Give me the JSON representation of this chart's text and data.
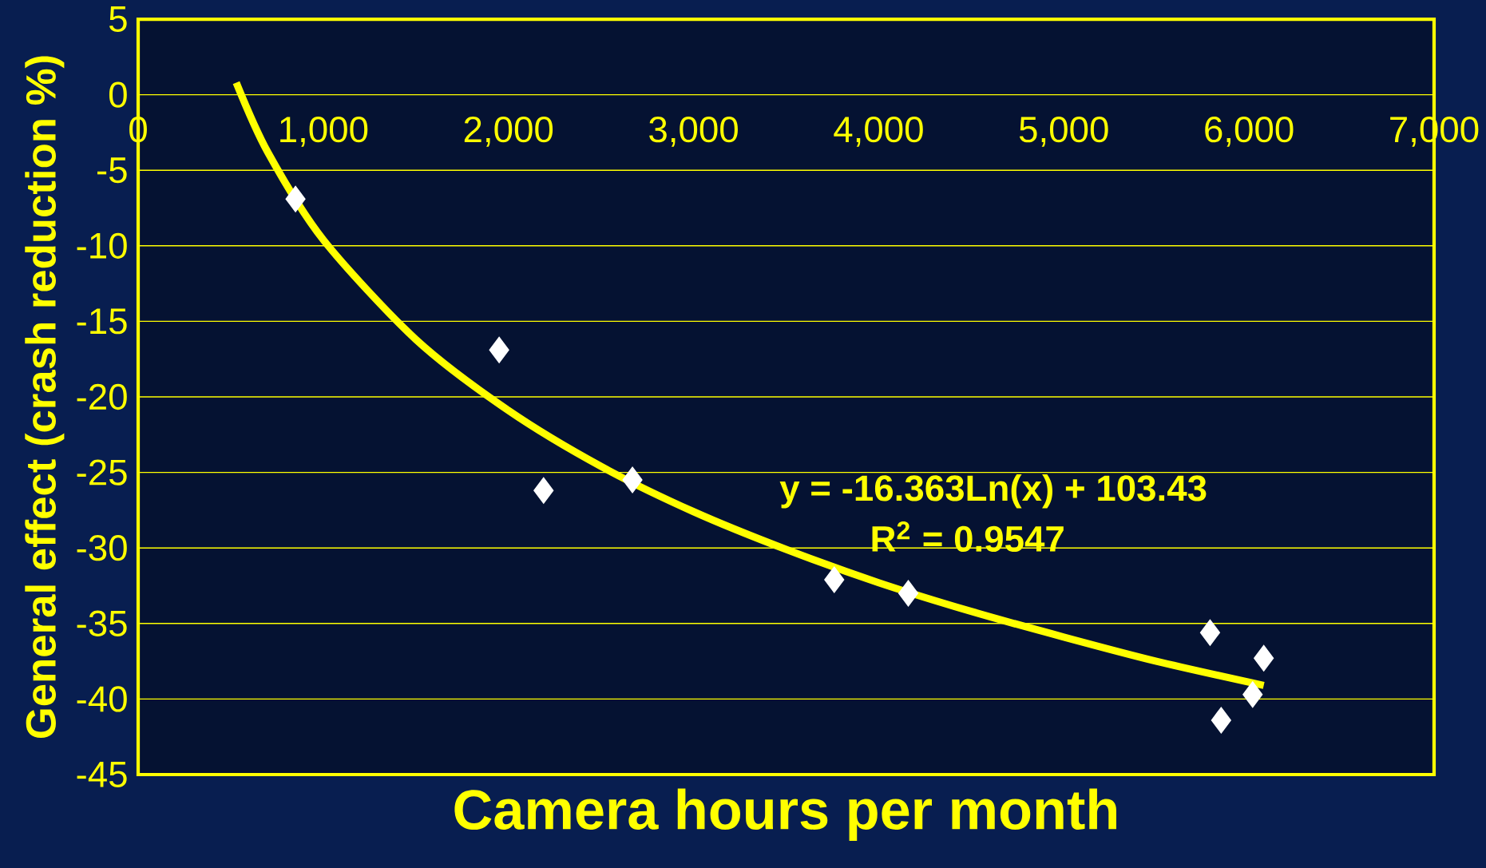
{
  "chart_data": {
    "type": "scatter",
    "xlabel": "Camera hours per month",
    "ylabel": "General effect (crash reduction %)",
    "xlim": [
      0,
      7000
    ],
    "ylim": [
      -45,
      5
    ],
    "xticks": [
      {
        "value": 0,
        "label": "0"
      },
      {
        "value": 1000,
        "label": "1,000"
      },
      {
        "value": 2000,
        "label": "2,000"
      },
      {
        "value": 3000,
        "label": "3,000"
      },
      {
        "value": 4000,
        "label": "4,000"
      },
      {
        "value": 5000,
        "label": "5,000"
      },
      {
        "value": 6000,
        "label": "6,000"
      },
      {
        "value": 7000,
        "label": "7,000"
      }
    ],
    "yticks": [
      5,
      0,
      -5,
      -10,
      -15,
      -20,
      -25,
      -30,
      -35,
      -40,
      -45
    ],
    "grid": "y",
    "series": [
      {
        "type": "scatter",
        "color": "#ffffff",
        "marker": "diamond",
        "x": [
          850,
          1950,
          2190,
          2670,
          3760,
          4160,
          5790,
          5850,
          6020,
          6080
        ],
        "values": [
          -6.9,
          -16.9,
          -26.2,
          -25.5,
          -32.1,
          -33.0,
          -35.6,
          -41.4,
          -39.7,
          -37.3
        ]
      },
      {
        "type": "line",
        "color": "#ffff00",
        "marker": "none",
        "x": [
          530,
          700,
          1000,
          1500,
          2000,
          2500,
          3000,
          3500,
          4000,
          4500,
          5000,
          5500,
          6080
        ],
        "values": [
          0.8,
          -3.8,
          -9.6,
          -16.2,
          -20.9,
          -24.6,
          -27.6,
          -30.1,
          -32.3,
          -34.2,
          -35.9,
          -37.5,
          -39.1
        ]
      }
    ],
    "annotations": [
      "y = -16.363Ln(x) + 103.43",
      "R$^{2}$ = 0.9547"
    ]
  }
}
